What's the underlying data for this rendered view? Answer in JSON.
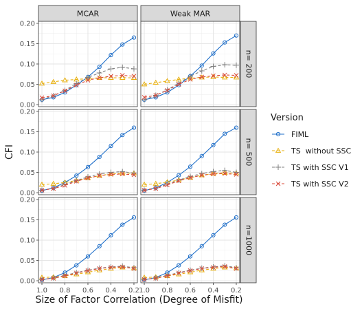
{
  "chart_data": {
    "type": "line",
    "xlabel": "Size of Factor Correlation (Degree of Misfit)",
    "ylabel": "CFI",
    "x": [
      1.0,
      0.9,
      0.8,
      0.7,
      0.6,
      0.5,
      0.4,
      0.3,
      0.2
    ],
    "x_tick_labels": [
      "1.0",
      "0.8",
      "0.6",
      "0.4",
      "0.2"
    ],
    "x_tick_values": [
      1.0,
      0.8,
      0.6,
      0.4,
      0.2
    ],
    "xlim": [
      1.03,
      0.17
    ],
    "ylim": [
      -0.005,
      0.205
    ],
    "y_tick_labels": [
      "0.00",
      "0.05",
      "0.10",
      "0.15",
      "0.20"
    ],
    "y_tick_values": [
      0,
      0.05,
      0.1,
      0.15,
      0.2
    ],
    "grid": true,
    "column_facets": [
      "MCAR",
      "Weak MAR"
    ],
    "row_facets": [
      "n= 200",
      "n= 500",
      "n=1000"
    ],
    "legend": {
      "title": "Version",
      "position": "right",
      "items": [
        "FIML",
        "TS  without SSC",
        "TS with SSC V1",
        "TS with SSC V2"
      ]
    },
    "series_styles": [
      {
        "color": "#1f6fc9",
        "marker": "circle",
        "dash": "solid"
      },
      {
        "color": "#e8b00e",
        "marker": "triangle",
        "dash": "dashed"
      },
      {
        "color": "#7f7f7f",
        "marker": "plus",
        "dash": "dashed"
      },
      {
        "color": "#d94a3a",
        "marker": "x",
        "dash": "dashed"
      }
    ],
    "panels": [
      {
        "row": 0,
        "col": 0,
        "series": [
          [
            0.012,
            0.018,
            0.03,
            0.048,
            0.068,
            0.093,
            0.122,
            0.148,
            0.165
          ],
          [
            0.052,
            0.056,
            0.06,
            0.062,
            0.064,
            0.066,
            0.066,
            0.066,
            0.066
          ],
          [
            0.012,
            0.022,
            0.035,
            0.052,
            0.067,
            0.078,
            0.088,
            0.092,
            0.088
          ],
          [
            0.017,
            0.022,
            0.034,
            0.048,
            0.06,
            0.066,
            0.07,
            0.072,
            0.07
          ]
        ]
      },
      {
        "row": 0,
        "col": 1,
        "series": [
          [
            0.012,
            0.018,
            0.03,
            0.048,
            0.07,
            0.096,
            0.126,
            0.153,
            0.17
          ],
          [
            0.05,
            0.054,
            0.058,
            0.062,
            0.065,
            0.067,
            0.068,
            0.067,
            0.067
          ],
          [
            0.012,
            0.023,
            0.036,
            0.053,
            0.07,
            0.083,
            0.094,
            0.098,
            0.097
          ],
          [
            0.018,
            0.023,
            0.035,
            0.05,
            0.062,
            0.068,
            0.071,
            0.073,
            0.072
          ]
        ]
      },
      {
        "row": 1,
        "col": 0,
        "series": [
          [
            0.005,
            0.012,
            0.025,
            0.042,
            0.063,
            0.088,
            0.115,
            0.142,
            0.16
          ],
          [
            0.02,
            0.022,
            0.025,
            0.03,
            0.036,
            0.042,
            0.046,
            0.048,
            0.048
          ],
          [
            0.006,
            0.011,
            0.02,
            0.03,
            0.039,
            0.046,
            0.05,
            0.052,
            0.048
          ],
          [
            0.006,
            0.01,
            0.018,
            0.028,
            0.036,
            0.042,
            0.045,
            0.046,
            0.044
          ]
        ]
      },
      {
        "row": 1,
        "col": 1,
        "series": [
          [
            0.005,
            0.012,
            0.025,
            0.043,
            0.064,
            0.09,
            0.117,
            0.145,
            0.16
          ],
          [
            0.02,
            0.022,
            0.026,
            0.031,
            0.037,
            0.043,
            0.047,
            0.049,
            0.048
          ],
          [
            0.006,
            0.012,
            0.021,
            0.031,
            0.04,
            0.047,
            0.052,
            0.055,
            0.05
          ],
          [
            0.006,
            0.01,
            0.019,
            0.029,
            0.037,
            0.043,
            0.046,
            0.047,
            0.045
          ]
        ]
      },
      {
        "row": 2,
        "col": 0,
        "series": [
          [
            0.002,
            0.008,
            0.02,
            0.038,
            0.06,
            0.085,
            0.112,
            0.138,
            0.156
          ],
          [
            0.008,
            0.009,
            0.012,
            0.016,
            0.021,
            0.026,
            0.03,
            0.033,
            0.031
          ],
          [
            0.003,
            0.007,
            0.013,
            0.02,
            0.026,
            0.031,
            0.034,
            0.036,
            0.032
          ],
          [
            0.003,
            0.006,
            0.012,
            0.019,
            0.025,
            0.03,
            0.033,
            0.034,
            0.03
          ]
        ]
      },
      {
        "row": 2,
        "col": 1,
        "series": [
          [
            0.002,
            0.008,
            0.02,
            0.038,
            0.06,
            0.085,
            0.112,
            0.138,
            0.156
          ],
          [
            0.008,
            0.009,
            0.012,
            0.016,
            0.021,
            0.026,
            0.03,
            0.033,
            0.031
          ],
          [
            0.003,
            0.007,
            0.013,
            0.02,
            0.026,
            0.031,
            0.034,
            0.037,
            0.032
          ],
          [
            0.003,
            0.006,
            0.012,
            0.019,
            0.025,
            0.03,
            0.033,
            0.035,
            0.03
          ]
        ]
      }
    ]
  }
}
